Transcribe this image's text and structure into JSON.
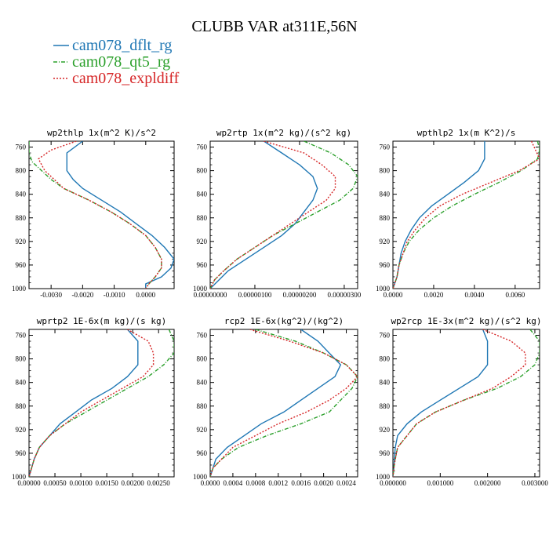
{
  "figure": {
    "title": "CLUBB VAR at311E,56N"
  },
  "legend": [
    {
      "label": "cam078_dflt_rg",
      "color": "#1f77b4",
      "dash": "solid"
    },
    {
      "label": "cam078_qt5_rg",
      "color": "#2ca02c",
      "dash": "dashdot"
    },
    {
      "label": "cam078_expldiff",
      "color": "#d62728",
      "dash": "dotted"
    }
  ],
  "chart_data": [
    {
      "type": "line",
      "title": "wp2thlp  1x(m^2 K)/s^2",
      "xlim": [
        -0.0037,
        0.0009
      ],
      "ylim": [
        1000,
        750
      ],
      "xticks": [
        -0.003,
        -0.002,
        -0.001,
        0.0
      ],
      "xtick_labels": [
        "-0.0030",
        "-0.0020",
        "-0.0010",
        "0.0000"
      ],
      "yticks": [
        760,
        800,
        840,
        880,
        920,
        960,
        1000
      ],
      "ytick_labels": [
        "760",
        "800",
        "840",
        "880",
        "920",
        "960",
        "1000"
      ],
      "series": [
        {
          "name": "cam078_dflt_rg",
          "y": [
            750,
            770,
            785,
            800,
            815,
            830,
            850,
            870,
            890,
            910,
            930,
            950,
            965,
            980,
            992,
            1000
          ],
          "x": [
            -0.002,
            -0.0025,
            -0.0025,
            -0.0025,
            -0.0023,
            -0.002,
            -0.0014,
            -0.0008,
            -0.0003,
            0.0002,
            0.0006,
            0.0009,
            0.0008,
            0.0005,
            0.0,
            0.0
          ]
        },
        {
          "name": "cam078_qt5_rg",
          "y": [
            750,
            770,
            785,
            800,
            815,
            830,
            850,
            870,
            890,
            910,
            930,
            950,
            965,
            980,
            992,
            1000
          ],
          "x": [
            -0.0037,
            -0.0037,
            -0.0036,
            -0.0033,
            -0.003,
            -0.0026,
            -0.0018,
            -0.0011,
            -0.0005,
            0.0,
            0.0003,
            0.0005,
            0.0005,
            0.0003,
            0.0001,
            0.0
          ]
        },
        {
          "name": "cam078_expldiff",
          "y": [
            750,
            765,
            780,
            800,
            815,
            830,
            850,
            870,
            890,
            910,
            930,
            950,
            965,
            980,
            992,
            1000
          ],
          "x": [
            -0.0022,
            -0.003,
            -0.0034,
            -0.0032,
            -0.0029,
            -0.0026,
            -0.0018,
            -0.0011,
            -0.0005,
            0.0,
            0.0003,
            0.0005,
            0.0005,
            0.0003,
            0.0001,
            0.0
          ]
        }
      ]
    },
    {
      "type": "line",
      "title": "wp2rtp  1x(m^2 kg)/(s^2 kg)",
      "xlim": [
        0.0,
        3.3e-06
      ],
      "ylim": [
        1000,
        750
      ],
      "xticks": [
        0.0,
        1e-06,
        2e-06,
        3e-06
      ],
      "xtick_labels": [
        "0.00000000",
        "0.00000100",
        "0.00000200",
        "0.00000300"
      ],
      "yticks": [
        760,
        800,
        840,
        880,
        920,
        960,
        1000
      ],
      "ytick_labels": [
        "760",
        "800",
        "840",
        "880",
        "920",
        "960",
        "1000"
      ],
      "series": [
        {
          "name": "cam078_dflt_rg",
          "y": [
            750,
            770,
            790,
            810,
            830,
            850,
            870,
            890,
            910,
            930,
            950,
            970,
            985,
            1000
          ],
          "x": [
            1.2e-06,
            1.6e-06,
            2e-06,
            2.3e-06,
            2.4e-06,
            2.3e-06,
            2.1e-06,
            1.9e-06,
            1.6e-06,
            1.2e-06,
            8e-07,
            4e-07,
            2e-07,
            0.0
          ]
        },
        {
          "name": "cam078_qt5_rg",
          "y": [
            750,
            770,
            790,
            810,
            830,
            850,
            870,
            890,
            910,
            930,
            950,
            970,
            985,
            1000
          ],
          "x": [
            2.1e-06,
            2.7e-06,
            3.1e-06,
            3.3e-06,
            3.2e-06,
            2.9e-06,
            2.4e-06,
            1.9e-06,
            1.4e-06,
            1e-06,
            6e-07,
            3e-07,
            1e-07,
            0.0
          ]
        },
        {
          "name": "cam078_expldiff",
          "y": [
            750,
            770,
            790,
            810,
            830,
            850,
            870,
            890,
            910,
            930,
            950,
            970,
            985,
            1000
          ],
          "x": [
            1.2e-06,
            2.1e-06,
            2.5e-06,
            2.8e-06,
            2.8e-06,
            2.6e-06,
            2.2e-06,
            1.8e-06,
            1.4e-06,
            1e-06,
            6e-07,
            3e-07,
            1e-07,
            0.0
          ]
        }
      ]
    },
    {
      "type": "line",
      "title": "wpthlp2  1x(m K^2)/s",
      "xlim": [
        0.0,
        0.0072
      ],
      "ylim": [
        1000,
        750
      ],
      "xticks": [
        0.0,
        0.002,
        0.004,
        0.006
      ],
      "xtick_labels": [
        "0.0000",
        "0.0020",
        "0.0040",
        "0.0060"
      ],
      "yticks": [
        760,
        800,
        840,
        880,
        920,
        960,
        1000
      ],
      "ytick_labels": [
        "760",
        "800",
        "840",
        "880",
        "920",
        "960",
        "1000"
      ],
      "series": [
        {
          "name": "cam078_dflt_rg",
          "y": [
            750,
            765,
            780,
            800,
            820,
            840,
            860,
            880,
            900,
            920,
            940,
            960,
            980,
            1000
          ],
          "x": [
            0.0045,
            0.0045,
            0.0045,
            0.0042,
            0.0035,
            0.0027,
            0.0019,
            0.0013,
            0.0009,
            0.0006,
            0.0004,
            0.0003,
            0.0002,
            0.0
          ]
        },
        {
          "name": "cam078_qt5_rg",
          "y": [
            750,
            765,
            780,
            800,
            820,
            840,
            860,
            880,
            900,
            920,
            940,
            960,
            980,
            1000
          ],
          "x": [
            0.0071,
            0.0072,
            0.0071,
            0.0063,
            0.0052,
            0.004,
            0.0029,
            0.002,
            0.0013,
            0.0008,
            0.0005,
            0.0003,
            0.0002,
            0.0
          ]
        },
        {
          "name": "cam078_expldiff",
          "y": [
            750,
            765,
            780,
            800,
            820,
            840,
            860,
            880,
            900,
            920,
            940,
            960,
            980,
            1000
          ],
          "x": [
            0.0068,
            0.007,
            0.0072,
            0.0062,
            0.0048,
            0.0034,
            0.0023,
            0.0016,
            0.0011,
            0.0007,
            0.0005,
            0.0003,
            0.0002,
            0.0
          ]
        }
      ]
    },
    {
      "type": "line",
      "title": "wprtp2  1E-6x(m kg)/(s kg)",
      "xlim": [
        0.0,
        0.0028
      ],
      "ylim": [
        1000,
        750
      ],
      "xticks": [
        0.0,
        0.0005,
        0.001,
        0.0015,
        0.002,
        0.0025
      ],
      "xtick_labels": [
        "0.00000",
        "0.00050",
        "0.00100",
        "0.00150",
        "0.00200",
        "0.00250"
      ],
      "yticks": [
        760,
        800,
        840,
        880,
        920,
        960,
        1000
      ],
      "ytick_labels": [
        "760",
        "800",
        "840",
        "880",
        "920",
        "960",
        "1000"
      ],
      "series": [
        {
          "name": "cam078_dflt_rg",
          "y": [
            750,
            770,
            790,
            810,
            830,
            850,
            870,
            890,
            910,
            930,
            950,
            970,
            985,
            1000
          ],
          "x": [
            0.0019,
            0.0021,
            0.0021,
            0.0021,
            0.0019,
            0.0016,
            0.0012,
            0.0009,
            0.0006,
            0.0004,
            0.0002,
            0.0001,
            5e-05,
            0.0
          ]
        },
        {
          "name": "cam078_qt5_rg",
          "y": [
            750,
            770,
            790,
            810,
            830,
            850,
            870,
            890,
            910,
            930,
            950,
            970,
            985,
            1000
          ],
          "x": [
            0.0027,
            0.0028,
            0.0028,
            0.0026,
            0.0023,
            0.0019,
            0.0015,
            0.0011,
            0.0007,
            0.0004,
            0.0002,
            0.0001,
            5e-05,
            0.0
          ]
        },
        {
          "name": "cam078_expldiff",
          "y": [
            750,
            770,
            790,
            810,
            830,
            850,
            870,
            890,
            910,
            930,
            950,
            970,
            985,
            1000
          ],
          "x": [
            0.0019,
            0.0023,
            0.0024,
            0.0024,
            0.0022,
            0.0018,
            0.0014,
            0.001,
            0.0007,
            0.0004,
            0.0002,
            0.0001,
            5e-05,
            0.0
          ]
        }
      ]
    },
    {
      "type": "line",
      "title": "rcp2  1E-6x(kg^2)/(kg^2)",
      "xlim": [
        0.0,
        0.0026
      ],
      "ylim": [
        1000,
        750
      ],
      "xticks": [
        0.0,
        0.0004,
        0.0008,
        0.0012,
        0.0016,
        0.002,
        0.0024
      ],
      "xtick_labels": [
        "0.0000",
        "0.0004",
        "0.0008",
        "0.0012",
        "0.0016",
        "0.0020",
        "0.0024"
      ],
      "yticks": [
        760,
        800,
        840,
        880,
        920,
        960,
        1000
      ],
      "ytick_labels": [
        "760",
        "800",
        "840",
        "880",
        "920",
        "960",
        "1000"
      ],
      "series": [
        {
          "name": "cam078_dflt_rg",
          "y": [
            750,
            770,
            790,
            810,
            830,
            850,
            870,
            890,
            910,
            930,
            950,
            970,
            985,
            1000
          ],
          "x": [
            0.0016,
            0.0019,
            0.0021,
            0.0023,
            0.0022,
            0.0019,
            0.0016,
            0.0013,
            0.0009,
            0.0006,
            0.0003,
            0.0001,
            5e-05,
            0.0
          ]
        },
        {
          "name": "cam078_qt5_rg",
          "y": [
            750,
            770,
            790,
            810,
            830,
            850,
            870,
            890,
            910,
            930,
            950,
            970,
            985,
            1000
          ],
          "x": [
            0.0008,
            0.0015,
            0.002,
            0.0024,
            0.0026,
            0.0025,
            0.0023,
            0.0021,
            0.0016,
            0.001,
            0.0005,
            0.0002,
            5e-05,
            0.0
          ]
        },
        {
          "name": "cam078_expldiff",
          "y": [
            750,
            770,
            790,
            810,
            830,
            850,
            870,
            890,
            910,
            930,
            950,
            970,
            985,
            1000
          ],
          "x": [
            0.0007,
            0.0014,
            0.002,
            0.0024,
            0.0026,
            0.0024,
            0.0021,
            0.0017,
            0.0012,
            0.0008,
            0.0004,
            0.0002,
            5e-05,
            0.0
          ]
        }
      ]
    },
    {
      "type": "line",
      "title": "wp2rcp  1E-3x(m^2 kg)/(s^2 kg)",
      "xlim": [
        0.0,
        0.0031
      ],
      "ylim": [
        1000,
        750
      ],
      "xticks": [
        0.0,
        0.001,
        0.002,
        0.003
      ],
      "xtick_labels": [
        "0.000000",
        "0.001000",
        "0.002000",
        "0.003000"
      ],
      "yticks": [
        760,
        800,
        840,
        880,
        920,
        960,
        1000
      ],
      "ytick_labels": [
        "760",
        "800",
        "840",
        "880",
        "920",
        "960",
        "1000"
      ],
      "series": [
        {
          "name": "cam078_dflt_rg",
          "y": [
            750,
            770,
            790,
            810,
            830,
            850,
            870,
            890,
            910,
            930,
            950,
            970,
            985,
            1000
          ],
          "x": [
            0.0019,
            0.002,
            0.002,
            0.002,
            0.0018,
            0.0014,
            0.001,
            0.0006,
            0.0003,
            0.0001,
            5e-05,
            3e-05,
            2e-05,
            0.0
          ]
        },
        {
          "name": "cam078_qt5_rg",
          "y": [
            750,
            770,
            790,
            810,
            830,
            850,
            870,
            890,
            910,
            930,
            950,
            970,
            985,
            1000
          ],
          "x": [
            0.0029,
            0.0031,
            0.0031,
            0.003,
            0.0027,
            0.0022,
            0.0015,
            0.0009,
            0.0005,
            0.0003,
            0.0001,
            5e-05,
            2e-05,
            0.0
          ]
        },
        {
          "name": "cam078_expldiff",
          "y": [
            750,
            770,
            790,
            810,
            830,
            850,
            870,
            890,
            910,
            930,
            950,
            970,
            985,
            1000
          ],
          "x": [
            0.0019,
            0.0025,
            0.0028,
            0.0028,
            0.0025,
            0.0021,
            0.0015,
            0.0009,
            0.0005,
            0.0003,
            0.0001,
            5e-05,
            2e-05,
            0.0
          ]
        }
      ]
    }
  ]
}
